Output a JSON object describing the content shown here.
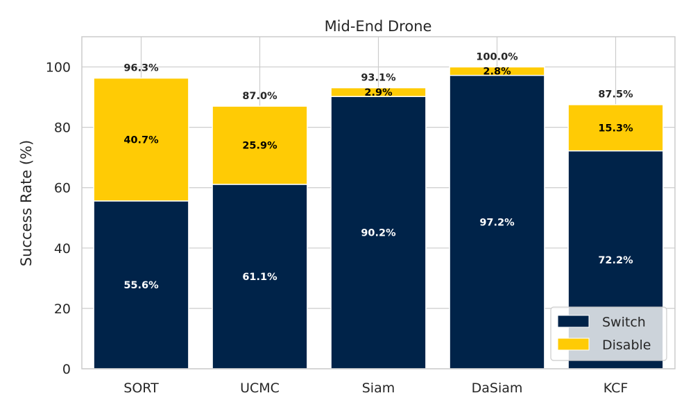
{
  "chart_data": {
    "type": "bar",
    "stacked": true,
    "title": "Mid-End Drone",
    "xlabel": "",
    "ylabel": "Success Rate (%)",
    "ylim": [
      0,
      110
    ],
    "yticks": [
      0,
      20,
      40,
      60,
      80,
      100
    ],
    "categories": [
      "SORT",
      "UCMC",
      "Siam",
      "DaSiam",
      "KCF"
    ],
    "series": [
      {
        "name": "Switch",
        "color": "#002349",
        "values": [
          55.6,
          61.1,
          90.2,
          97.2,
          72.2
        ],
        "labels": [
          "55.6%",
          "61.1%",
          "90.2%",
          "97.2%",
          "72.2%"
        ]
      },
      {
        "name": "Disable",
        "color": "#FFCB05",
        "values": [
          40.7,
          25.9,
          2.9,
          2.8,
          15.3
        ],
        "labels": [
          "40.7%",
          "25.9%",
          "2.9%",
          "2.8%",
          "15.3%"
        ]
      }
    ],
    "totals": [
      96.3,
      87.0,
      93.1,
      100.0,
      87.5
    ],
    "total_labels": [
      "96.3%",
      "87.0%",
      "93.1%",
      "100.0%",
      "87.5%"
    ],
    "grid": true,
    "legend_position": "lower-right"
  }
}
